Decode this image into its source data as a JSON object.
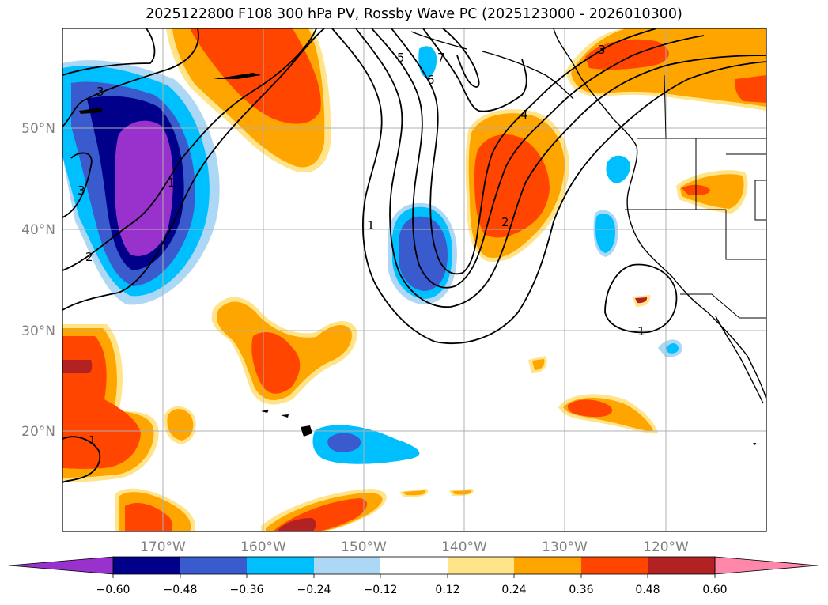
{
  "title": "2025122800 F108 300 hPa PV, Rossby Wave PC (2025123000 - 2026010300)",
  "map": {
    "lat_labels": [
      "50°N",
      "40°N",
      "30°N",
      "20°N"
    ],
    "lon_labels": [
      "170°W",
      "160°W",
      "150°W",
      "140°W",
      "130°W",
      "120°W"
    ],
    "contour_labels": [
      "3",
      "3",
      "1",
      "2",
      "5",
      "6",
      "7",
      "1",
      "4",
      "3",
      "2",
      "1",
      "1"
    ],
    "colors": {
      "c_m072": "#9932cc",
      "c_m060": "#00008b",
      "c_m048": "#3a5bcd",
      "c_m036": "#00bfff",
      "c_m024": "#add8f5",
      "c_0": "#ffffff",
      "c_p012": "#ffe48a",
      "c_p024": "#ffa500",
      "c_p036": "#ff4500",
      "c_p048": "#b22222",
      "c_p060": "#ff88aa"
    }
  },
  "colorbar": {
    "ticks": [
      "−0.60",
      "−0.48",
      "−0.36",
      "−0.24",
      "−0.12",
      "0.12",
      "0.24",
      "0.36",
      "0.48",
      "0.60"
    ],
    "tick_values": [
      -0.6,
      -0.48,
      -0.36,
      -0.24,
      -0.12,
      0.12,
      0.24,
      0.36,
      0.48,
      0.6
    ]
  }
}
